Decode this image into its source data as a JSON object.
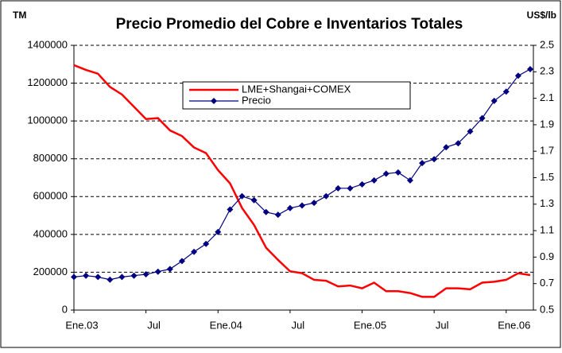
{
  "chart_data": {
    "type": "line",
    "title": "Precio Promedio del Cobre e Inventarios Totales",
    "ylabel": "TM",
    "y2label": "US$/lb",
    "categories": [
      "Ene.03",
      null,
      null,
      null,
      null,
      null,
      "Jul",
      null,
      null,
      null,
      null,
      null,
      "Ene.04",
      null,
      null,
      null,
      null,
      null,
      "Jul",
      null,
      null,
      null,
      null,
      null,
      "Ene.05",
      null,
      null,
      null,
      null,
      null,
      "Jul",
      null,
      null,
      null,
      null,
      null,
      "Ene.06",
      null,
      null
    ],
    "series": [
      {
        "name": "LME+Shangai+COMEX",
        "color": "#ff0000",
        "axis": "y",
        "values": [
          1295000,
          1270000,
          1250000,
          1180000,
          1140000,
          1075000,
          1010000,
          1015000,
          950000,
          920000,
          860000,
          830000,
          740000,
          670000,
          540000,
          450000,
          330000,
          265000,
          205000,
          195000,
          160000,
          155000,
          125000,
          130000,
          115000,
          145000,
          100000,
          100000,
          90000,
          70000,
          70000,
          115000,
          115000,
          110000,
          145000,
          150000,
          160000,
          195000,
          185000
        ]
      },
      {
        "name": "Precio",
        "color": "#000080",
        "axis": "y2",
        "values": [
          0.75,
          0.76,
          0.75,
          0.73,
          0.75,
          0.76,
          0.77,
          0.79,
          0.81,
          0.87,
          0.94,
          1.0,
          1.09,
          1.26,
          1.36,
          1.33,
          1.24,
          1.22,
          1.27,
          1.29,
          1.31,
          1.36,
          1.42,
          1.42,
          1.45,
          1.48,
          1.53,
          1.54,
          1.48,
          1.61,
          1.64,
          1.73,
          1.76,
          1.85,
          1.95,
          2.08,
          2.15,
          2.27,
          2.32
        ]
      }
    ],
    "ylim": [
      0,
      1400000
    ],
    "yticks": [
      0,
      200000,
      400000,
      600000,
      800000,
      1000000,
      1200000,
      1400000
    ],
    "y2lim": [
      0.5,
      2.5
    ],
    "y2ticks": [
      0.5,
      0.7,
      0.9,
      1.1,
      1.3,
      1.5,
      1.7,
      1.9,
      2.1,
      2.3,
      2.5
    ],
    "grid": true
  }
}
